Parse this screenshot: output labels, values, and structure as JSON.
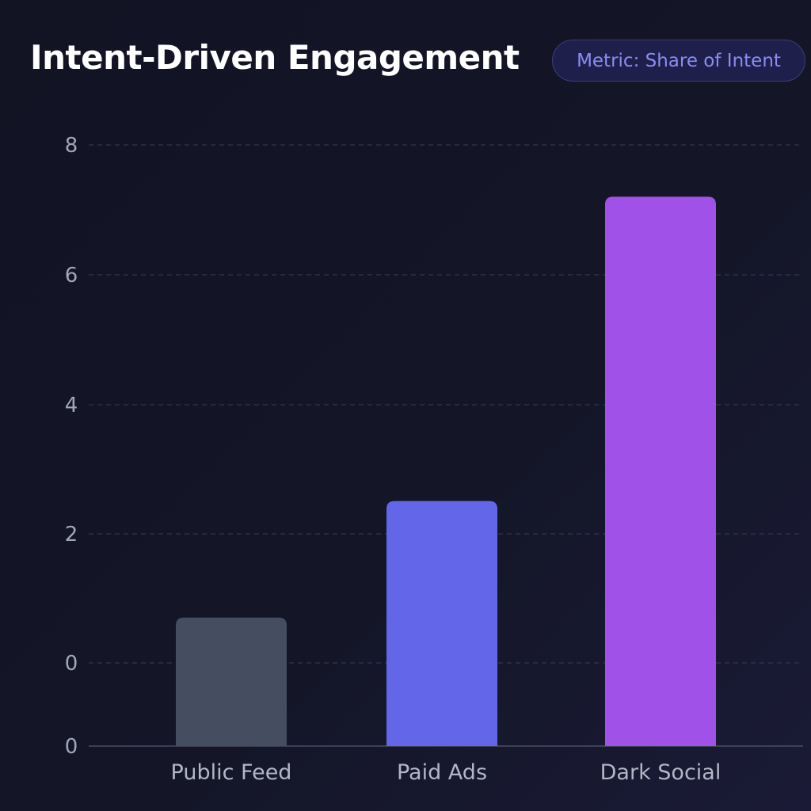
{
  "header": {
    "title": "Intent-Driven Engagement",
    "metric_badge": "Metric: Share of Intent"
  },
  "chart_data": {
    "type": "bar",
    "title": "Intent-Driven Engagement",
    "categories": [
      "Public Feed",
      "Paid Ads",
      "Dark Social"
    ],
    "values": [
      0.7,
      2.5,
      7.2
    ],
    "colors": [
      "#454d61",
      "#6366e8",
      "#a052e8"
    ],
    "yticks": [
      "8",
      "6",
      "4",
      "2",
      "0",
      "0"
    ],
    "ylim": [
      0,
      8
    ],
    "grid": true,
    "xlabel": "",
    "ylabel": ""
  }
}
